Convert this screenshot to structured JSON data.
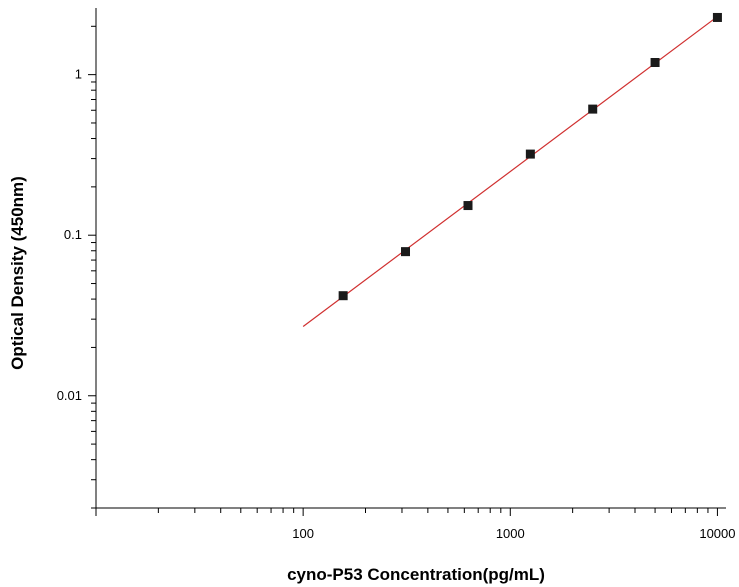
{
  "chart_data": {
    "type": "scatter",
    "xlabel": "cyno-P53 Concentration(pg/mL)",
    "ylabel": "Optical Density (450nm)",
    "xscale": "log",
    "yscale": "log",
    "xlim": [
      10,
      11000
    ],
    "ylim": [
      0.002,
      2.6
    ],
    "x_tick_labels": [
      {
        "value": 100,
        "label": "100"
      },
      {
        "value": 1000,
        "label": "1000"
      },
      {
        "value": 10000,
        "label": "10000"
      }
    ],
    "y_tick_labels": [
      {
        "value": 0.01,
        "label": "0.01"
      },
      {
        "value": 0.1,
        "label": "0.1"
      },
      {
        "value": 1,
        "label": "1"
      }
    ],
    "grid": false,
    "legend": "none",
    "points": {
      "x": [
        156,
        312,
        625,
        1250,
        2500,
        5000,
        10000
      ],
      "y": [
        0.042,
        0.079,
        0.153,
        0.32,
        0.61,
        1.19,
        2.27
      ]
    },
    "fit_line": {
      "x": [
        100,
        10000
      ],
      "y": [
        0.027,
        2.3
      ]
    },
    "colors": {
      "point": "#1a1a1a",
      "fit_line": "#d03030",
      "axis": "#000000"
    }
  }
}
